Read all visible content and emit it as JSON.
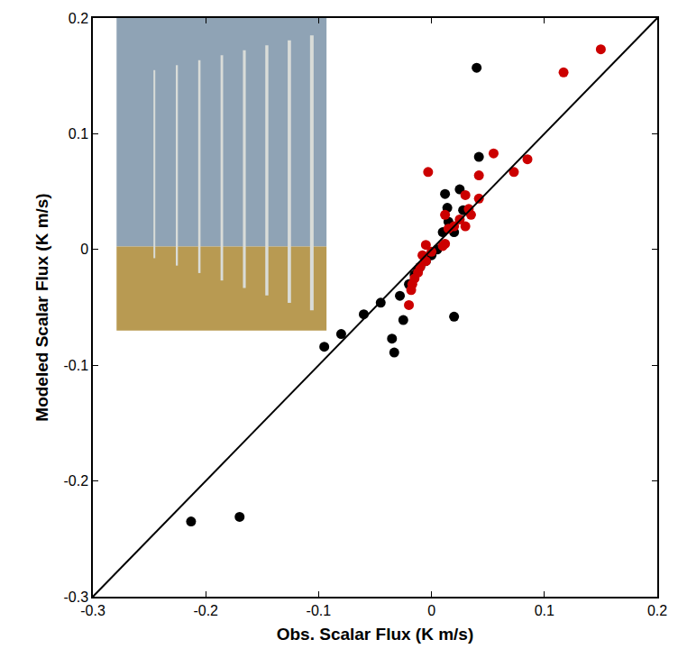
{
  "chart_data": {
    "type": "scatter",
    "x_label": "Obs. Scalar Flux (K m/s)",
    "y_label": "Modeled Scalar Flux (K m/s)",
    "xlim": [
      -0.3,
      0.2
    ],
    "ylim": [
      -0.3,
      0.2
    ],
    "xticks": [
      -0.3,
      -0.2,
      -0.1,
      0,
      0.1,
      0.2
    ],
    "yticks": [
      -0.3,
      -0.2,
      -0.1,
      0,
      0.1,
      0.2
    ],
    "grid": false,
    "series": [
      {
        "color": "#000000",
        "marker": "circle",
        "x": [
          -0.213,
          -0.17,
          -0.095,
          -0.08,
          -0.06,
          -0.045,
          -0.035,
          -0.033,
          -0.028,
          -0.025,
          -0.02,
          -0.015,
          -0.01,
          -0.005,
          0,
          0.005,
          0.01,
          0.012,
          0.014,
          0.015,
          0.02,
          0.025,
          0.028,
          0.04,
          0.042,
          0.02,
          -0.012
        ],
        "y": [
          -0.235,
          -0.231,
          -0.084,
          -0.073,
          -0.056,
          -0.046,
          -0.077,
          -0.089,
          -0.04,
          -0.061,
          -0.03,
          -0.022,
          -0.015,
          -0.01,
          -0.005,
          0,
          0.015,
          0.048,
          0.036,
          0.024,
          -0.058,
          0.052,
          0.034,
          0.157,
          0.08,
          0.015,
          -0.018
        ]
      },
      {
        "color": "#cc0000",
        "marker": "circle",
        "x": [
          0.15,
          0.117,
          0.085,
          0.073,
          0.055,
          0.042,
          0.042,
          0.03,
          0.033,
          0.03,
          0.025,
          0.02,
          0.015,
          0.012,
          0.01,
          -0.003,
          -0.005,
          -0.005,
          -0.008,
          -0.01,
          -0.012,
          -0.015,
          -0.018,
          -0.02,
          -0.017,
          0,
          0.035,
          0.012
        ],
        "y": [
          0.173,
          0.153,
          0.078,
          0.067,
          0.083,
          0.064,
          0.044,
          0.047,
          0.035,
          0.02,
          0.026,
          0.02,
          0.018,
          0.005,
          0.003,
          0.067,
          0.004,
          -0.01,
          -0.005,
          -0.015,
          -0.02,
          -0.025,
          -0.035,
          -0.048,
          -0.03,
          -0.002,
          0.03,
          0.03
        ]
      },
      {
        "type": "line",
        "color": "#000000",
        "line_style": "solid",
        "x": [
          -0.3,
          0.2
        ],
        "y": [
          -0.3,
          0.2
        ]
      }
    ]
  }
}
